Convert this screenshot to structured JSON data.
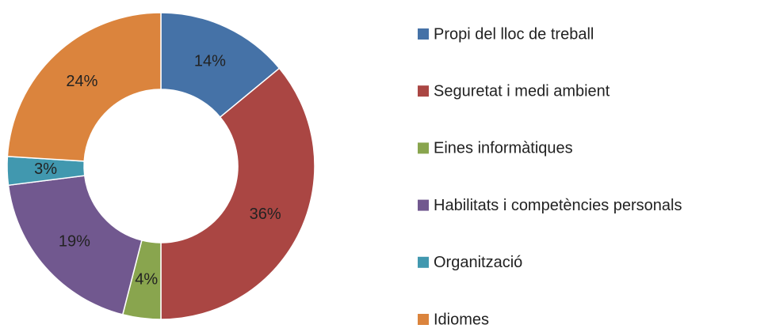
{
  "chart_data": {
    "type": "donut",
    "categories": [
      "Propi del lloc de treball",
      "Seguretat i medi ambient",
      "Eines informàtiques",
      "Habilitats i competències personals",
      "Organització",
      "Idiomes"
    ],
    "values": [
      14,
      36,
      4,
      19,
      3,
      24
    ],
    "value_labels": [
      "14%",
      "36%",
      "4%",
      "19%",
      "3%",
      "24%"
    ],
    "colors": [
      "#4572a7",
      "#aa4643",
      "#89a54e",
      "#71588f",
      "#4198af",
      "#db843d"
    ],
    "legend": "right"
  }
}
